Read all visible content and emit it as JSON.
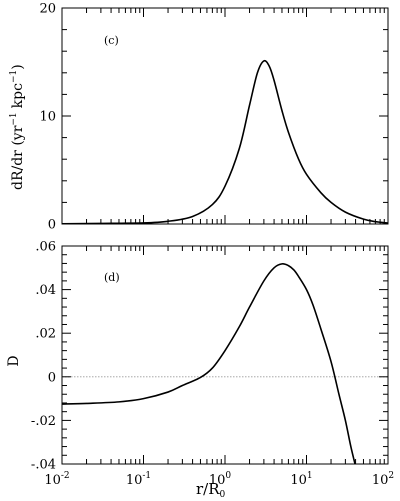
{
  "chart_data": [
    {
      "type": "line",
      "panel_label": "(c)",
      "xscale": "log",
      "xlim": [
        0.01,
        100
      ],
      "ylim": [
        0,
        20
      ],
      "ylabel": "dR/dr (yr⁻¹ kpc⁻¹)",
      "ylabel_parts": {
        "a": "dR/dr (yr",
        "b": "kpc",
        "exp": "−1"
      },
      "yticks": [
        0,
        10,
        20
      ],
      "ytick_labels": [
        "0",
        "10",
        "20"
      ],
      "series": [
        {
          "x": [
            0.01,
            0.03,
            0.1,
            0.2,
            0.4,
            0.7,
            1.0,
            1.5,
            2.0,
            2.5,
            3.0,
            3.5,
            4.0,
            5.0,
            6.0,
            8.0,
            10,
            15,
            20,
            30,
            50,
            70,
            100
          ],
          "y": [
            0.02,
            0.05,
            0.1,
            0.25,
            0.7,
            1.8,
            3.5,
            7.0,
            11.0,
            14.0,
            15.1,
            14.6,
            13.3,
            10.5,
            8.5,
            6.0,
            4.6,
            2.9,
            2.0,
            1.1,
            0.45,
            0.22,
            0.08
          ]
        }
      ]
    },
    {
      "type": "line",
      "panel_label": "(d)",
      "xscale": "log",
      "xlim": [
        0.01,
        100
      ],
      "ylim": [
        -0.04,
        0.06
      ],
      "xlabel": "r/R",
      "xlabel_sub": "0",
      "ylabel": "D",
      "yticks": [
        -0.04,
        -0.02,
        0,
        0.02,
        0.04,
        0.06
      ],
      "ytick_labels": [
        "-.04",
        "-.02",
        "0",
        ".02",
        ".04",
        ".06"
      ],
      "xticks": [
        0.01,
        0.1,
        1,
        10,
        100
      ],
      "xtick_labels": [
        {
          "base": "10",
          "exp": "-2"
        },
        {
          "base": "10",
          "exp": "-1"
        },
        {
          "base": "10",
          "exp": "0"
        },
        {
          "base": "10",
          "exp": "1"
        },
        {
          "base": "10",
          "exp": "2"
        }
      ],
      "series": [
        {
          "x": [
            0.01,
            0.02,
            0.05,
            0.1,
            0.2,
            0.3,
            0.5,
            0.7,
            1.0,
            1.5,
            2.0,
            3.0,
            4.0,
            5.0,
            6.0,
            7.0,
            8.0,
            10,
            12,
            15,
            20,
            25,
            30,
            35,
            40
          ],
          "y": [
            -0.0125,
            -0.0122,
            -0.0115,
            -0.01,
            -0.007,
            -0.004,
            -0.0003,
            0.004,
            0.012,
            0.023,
            0.032,
            0.044,
            0.05,
            0.0518,
            0.051,
            0.049,
            0.046,
            0.04,
            0.033,
            0.022,
            0.007,
            -0.008,
            -0.02,
            -0.032,
            -0.041
          ]
        }
      ]
    }
  ]
}
